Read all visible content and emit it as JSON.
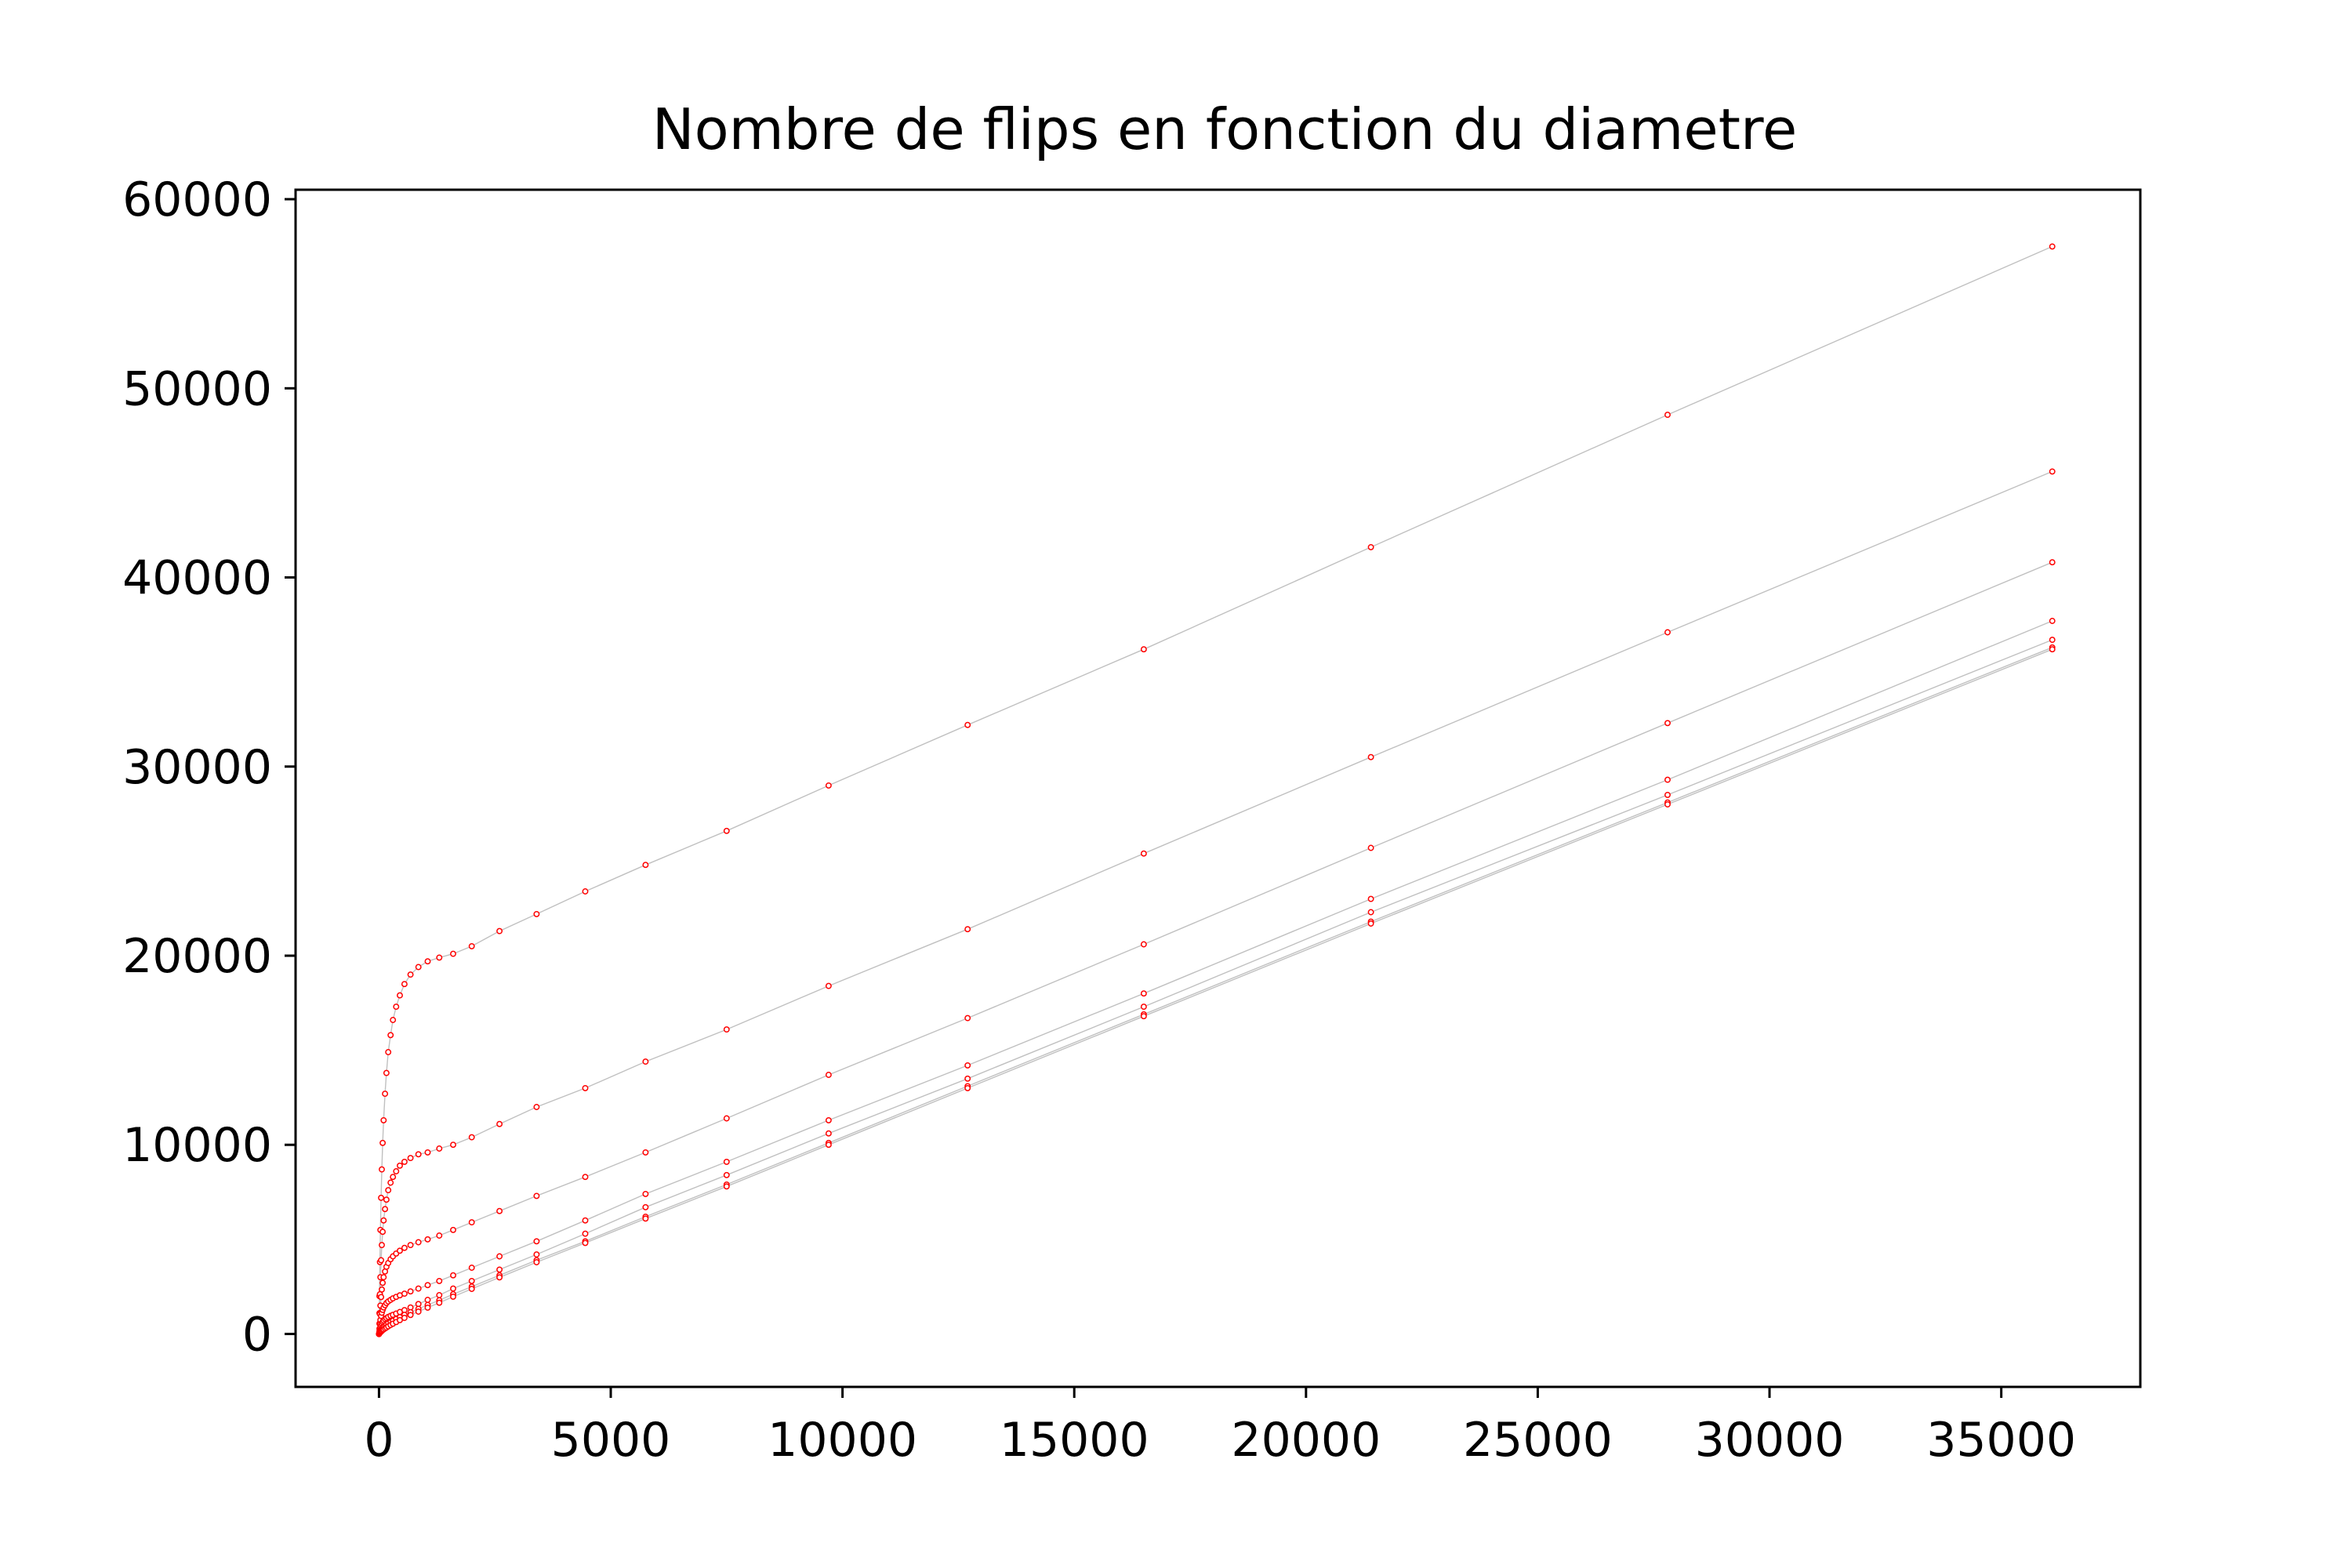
{
  "chart_data": {
    "type": "line",
    "title": "Nombre de flips en fonction du diametre",
    "xlabel": "",
    "ylabel": "",
    "xlim": [
      -1800,
      38000
    ],
    "ylim": [
      -2800,
      60500
    ],
    "xticks": [
      0,
      5000,
      10000,
      15000,
      20000,
      25000,
      30000,
      35000
    ],
    "yticks": [
      0,
      10000,
      20000,
      30000,
      40000,
      50000,
      60000
    ],
    "grid": false,
    "line_color": "#c0c0c0",
    "marker_color": "#ff0000",
    "series": [
      {
        "x": [
          0,
          10,
          20,
          30,
          45,
          60,
          80,
          100,
          130,
          160,
          200,
          250,
          300,
          370,
          450,
          550,
          680,
          850,
          1050,
          1300,
          1600,
          2000,
          2600,
          3400,
          4450,
          5750,
          7500,
          9700,
          12700,
          16500,
          21400,
          27800,
          36100
        ],
        "y": [
          0,
          2000,
          3800,
          5500,
          7200,
          8700,
          10100,
          11300,
          12700,
          13800,
          14900,
          15800,
          16600,
          17300,
          17900,
          18500,
          19000,
          19400,
          19700,
          19900,
          20100,
          20500,
          21300,
          22200,
          23400,
          24800,
          26600,
          29000,
          32200,
          36200,
          41600,
          48600,
          57500
        ]
      },
      {
        "x": [
          0,
          10,
          20,
          30,
          45,
          60,
          80,
          100,
          130,
          160,
          200,
          250,
          300,
          370,
          450,
          550,
          680,
          850,
          1050,
          1300,
          1600,
          2000,
          2600,
          3400,
          4450,
          5750,
          7500,
          9700,
          12700,
          16500,
          21400,
          27800,
          36100
        ],
        "y": [
          0,
          1100,
          2100,
          3000,
          3900,
          4700,
          5400,
          6000,
          6600,
          7100,
          7600,
          8000,
          8300,
          8600,
          8900,
          9100,
          9300,
          9500,
          9600,
          9800,
          10000,
          10400,
          11100,
          12000,
          13000,
          14400,
          16100,
          18400,
          21400,
          25400,
          30500,
          37100,
          45600
        ]
      },
      {
        "x": [
          0,
          10,
          20,
          30,
          45,
          60,
          80,
          100,
          130,
          160,
          200,
          250,
          300,
          370,
          450,
          550,
          680,
          850,
          1050,
          1300,
          1600,
          2000,
          2600,
          3400,
          4450,
          5750,
          7500,
          9700,
          12700,
          16500,
          21400,
          27800,
          36100
        ],
        "y": [
          0,
          550,
          1050,
          1500,
          1950,
          2350,
          2700,
          3000,
          3300,
          3550,
          3750,
          3950,
          4100,
          4250,
          4400,
          4550,
          4700,
          4850,
          5000,
          5200,
          5500,
          5900,
          6500,
          7300,
          8300,
          9600,
          11400,
          13700,
          16700,
          20600,
          25700,
          32300,
          40800
        ]
      },
      {
        "x": [
          0,
          10,
          20,
          30,
          45,
          60,
          80,
          100,
          130,
          160,
          200,
          250,
          300,
          370,
          450,
          550,
          680,
          850,
          1050,
          1300,
          1600,
          2000,
          2600,
          3400,
          4450,
          5750,
          7500,
          9700,
          12700,
          16500,
          21400,
          27800,
          36100
        ],
        "y": [
          0,
          280,
          520,
          740,
          950,
          1120,
          1270,
          1400,
          1520,
          1630,
          1720,
          1800,
          1880,
          1960,
          2040,
          2130,
          2250,
          2400,
          2580,
          2800,
          3100,
          3500,
          4100,
          4900,
          6000,
          7400,
          9100,
          11300,
          14200,
          18000,
          23000,
          29300,
          37700
        ]
      },
      {
        "x": [
          0,
          10,
          20,
          30,
          45,
          60,
          80,
          100,
          130,
          160,
          200,
          250,
          300,
          370,
          450,
          550,
          680,
          850,
          1050,
          1300,
          1600,
          2000,
          2600,
          3400,
          4450,
          5750,
          7500,
          9700,
          12700,
          16500,
          21400,
          27800,
          36100
        ],
        "y": [
          0,
          140,
          260,
          370,
          470,
          560,
          640,
          710,
          780,
          840,
          900,
          960,
          1010,
          1080,
          1160,
          1260,
          1400,
          1580,
          1800,
          2050,
          2400,
          2800,
          3400,
          4200,
          5300,
          6700,
          8400,
          10600,
          13500,
          17300,
          22300,
          28500,
          36700
        ]
      },
      {
        "x": [
          0,
          10,
          20,
          30,
          45,
          60,
          80,
          100,
          130,
          160,
          200,
          250,
          300,
          370,
          450,
          550,
          680,
          850,
          1050,
          1300,
          1600,
          2000,
          2600,
          3400,
          4450,
          5750,
          7500,
          9700,
          12700,
          16500,
          21400,
          27800,
          36100
        ],
        "y": [
          0,
          70,
          130,
          185,
          240,
          290,
          340,
          390,
          440,
          500,
          560,
          630,
          700,
          790,
          890,
          1010,
          1150,
          1330,
          1530,
          1780,
          2100,
          2500,
          3100,
          3900,
          4900,
          6200,
          7900,
          10100,
          13100,
          16900,
          21800,
          28100,
          36300
        ]
      },
      {
        "x": [
          0,
          10,
          20,
          30,
          45,
          60,
          80,
          100,
          130,
          160,
          200,
          250,
          300,
          370,
          450,
          550,
          680,
          850,
          1050,
          1300,
          1600,
          2000,
          2600,
          3400,
          4450,
          5750,
          7500,
          9700,
          12700,
          16500,
          21400,
          27800,
          36100
        ],
        "y": [
          0,
          35,
          65,
          95,
          125,
          160,
          200,
          240,
          290,
          340,
          400,
          470,
          540,
          630,
          730,
          850,
          1000,
          1180,
          1390,
          1650,
          1970,
          2380,
          2990,
          3790,
          4810,
          6100,
          7800,
          10000,
          13000,
          16800,
          21700,
          28000,
          36200
        ]
      }
    ]
  }
}
